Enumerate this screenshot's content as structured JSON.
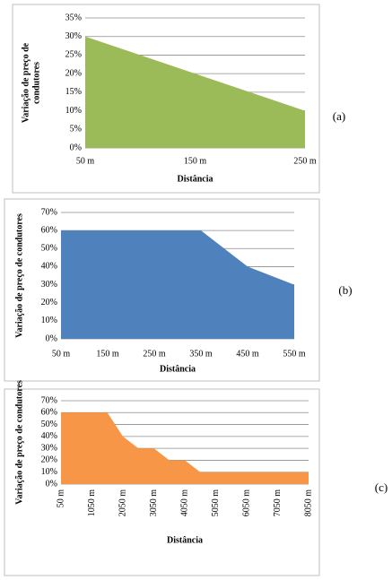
{
  "chart_data": [
    {
      "type": "area",
      "panel_label": "(a)",
      "x_label": "Distância",
      "y_label": [
        "Variação de preço de",
        "condutores"
      ],
      "color": "#9bbb59",
      "grid": true,
      "x": [
        50,
        250
      ],
      "values": [
        30,
        10
      ],
      "xlim": [
        50,
        250
      ],
      "xticks": [
        {
          "value": 50,
          "label": "50 m"
        },
        {
          "value": 150,
          "label": "150 m"
        },
        {
          "value": 250,
          "label": "250 m"
        }
      ],
      "ylim": [
        0,
        35
      ],
      "yticks": [
        {
          "value": 0,
          "label": "0%"
        },
        {
          "value": 5,
          "label": "5%"
        },
        {
          "value": 10,
          "label": "10%"
        },
        {
          "value": 15,
          "label": "15%"
        },
        {
          "value": 20,
          "label": "20%"
        },
        {
          "value": 25,
          "label": "25%"
        },
        {
          "value": 30,
          "label": "30%"
        },
        {
          "value": 35,
          "label": "35%"
        }
      ]
    },
    {
      "type": "area",
      "panel_label": "(b)",
      "x_label": "Distância",
      "y_label": [
        "Variação de preço de condutores"
      ],
      "color": "#4f81bd",
      "grid": true,
      "x": [
        50,
        350,
        450,
        550
      ],
      "values": [
        60,
        60,
        40,
        30
      ],
      "xlim": [
        50,
        550
      ],
      "xticks": [
        {
          "value": 50,
          "label": "50 m"
        },
        {
          "value": 150,
          "label": "150 m"
        },
        {
          "value": 250,
          "label": "250 m"
        },
        {
          "value": 350,
          "label": "350 m"
        },
        {
          "value": 450,
          "label": "450 m"
        },
        {
          "value": 550,
          "label": "550 m"
        }
      ],
      "ylim": [
        0,
        70
      ],
      "yticks": [
        {
          "value": 0,
          "label": "0%"
        },
        {
          "value": 10,
          "label": "10%"
        },
        {
          "value": 20,
          "label": "20%"
        },
        {
          "value": 30,
          "label": "30%"
        },
        {
          "value": 40,
          "label": "40%"
        },
        {
          "value": 50,
          "label": "50%"
        },
        {
          "value": 60,
          "label": "60%"
        },
        {
          "value": 70,
          "label": "70%"
        }
      ]
    },
    {
      "type": "area",
      "panel_label": "(c)",
      "x_label": "Distância",
      "y_label": [
        "Variação de preço de condutores"
      ],
      "color": "#f79646",
      "grid": true,
      "x": [
        50,
        1550,
        2050,
        2550,
        3050,
        3550,
        4050,
        4550,
        8050
      ],
      "values": [
        60,
        60,
        40,
        30,
        30,
        20,
        20,
        10,
        10
      ],
      "xlim": [
        50,
        8050
      ],
      "xticks": [
        {
          "value": 50,
          "label": "50 m"
        },
        {
          "value": 1050,
          "label": "1050 m"
        },
        {
          "value": 2050,
          "label": "2050 m"
        },
        {
          "value": 3050,
          "label": "3050 m"
        },
        {
          "value": 4050,
          "label": "4050 m"
        },
        {
          "value": 5050,
          "label": "5050 m"
        },
        {
          "value": 6050,
          "label": "6050 m"
        },
        {
          "value": 7050,
          "label": "7050 m"
        },
        {
          "value": 8050,
          "label": "8050 m"
        }
      ],
      "ylim": [
        0,
        70
      ],
      "yticks": [
        {
          "value": 0,
          "label": "0%"
        },
        {
          "value": 10,
          "label": "10%"
        },
        {
          "value": 20,
          "label": "20%"
        },
        {
          "value": 30,
          "label": "30%"
        },
        {
          "value": 40,
          "label": "40%"
        },
        {
          "value": 50,
          "label": "50%"
        },
        {
          "value": 60,
          "label": "60%"
        },
        {
          "value": 70,
          "label": "70%"
        }
      ]
    }
  ]
}
